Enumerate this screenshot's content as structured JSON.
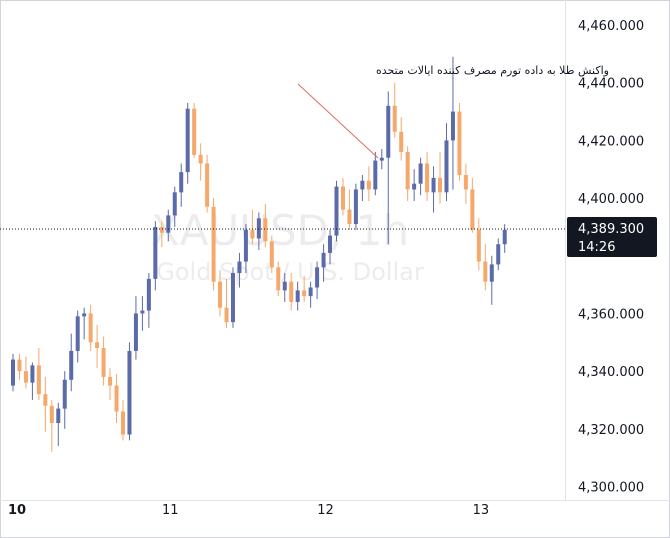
{
  "chart_data": {
    "type": "candlestick",
    "watermark": {
      "symbol": "XAUUSD, 1h",
      "description": "Gold Spot / U.S. Dollar"
    },
    "annotation": "واکنش طلا به داده تورم مصرف کننده ایالات متحده",
    "x_labels": [
      {
        "label": "10",
        "bar": 0
      },
      {
        "label": "11",
        "bar": 24
      },
      {
        "label": "12",
        "bar": 48
      },
      {
        "label": "13",
        "bar": 72
      }
    ],
    "y_ticks": [
      "4,460.000",
      "4,440.000",
      "4,420.000",
      "4,400.000",
      "4,360.000",
      "4,340.000",
      "4,320.000",
      "4,300.000"
    ],
    "ylim": [
      4296,
      4468
    ],
    "last_price": "4,389.300",
    "countdown": "14:26",
    "colors": {
      "up": "#5b6aa8",
      "down": "#f5a86a",
      "price_label": "#131722"
    },
    "ohlc": [
      [
        4335,
        4346,
        4333,
        4344
      ],
      [
        4344,
        4346,
        4337,
        4340
      ],
      [
        4340,
        4345,
        4334,
        4336
      ],
      [
        4336,
        4343,
        4330,
        4342
      ],
      [
        4342,
        4348,
        4330,
        4332
      ],
      [
        4332,
        4338,
        4319,
        4328
      ],
      [
        4328,
        4330,
        4312,
        4322
      ],
      [
        4322,
        4329,
        4314,
        4327
      ],
      [
        4327,
        4340,
        4320,
        4337
      ],
      [
        4337,
        4353,
        4333,
        4347
      ],
      [
        4347,
        4361,
        4343,
        4359
      ],
      [
        4359,
        4362,
        4351,
        4360
      ],
      [
        4360,
        4363,
        4347,
        4350
      ],
      [
        4350,
        4356,
        4341,
        4348
      ],
      [
        4348,
        4352,
        4335,
        4338
      ],
      [
        4338,
        4341,
        4330,
        4335
      ],
      [
        4335,
        4339,
        4322,
        4326
      ],
      [
        4326,
        4330,
        4316,
        4318
      ],
      [
        4318,
        4350,
        4316,
        4347
      ],
      [
        4347,
        4366,
        4344,
        4360
      ],
      [
        4360,
        4366,
        4354,
        4361
      ],
      [
        4361,
        4374,
        4355,
        4372
      ],
      [
        4372,
        4392,
        4368,
        4390
      ],
      [
        4390,
        4392,
        4383,
        4388
      ],
      [
        4388,
        4396,
        4385,
        4394
      ],
      [
        4394,
        4404,
        4390,
        4402
      ],
      [
        4402,
        4412,
        4397,
        4409
      ],
      [
        4409,
        4433,
        4405,
        4431
      ],
      [
        4431,
        4433,
        4414,
        4415
      ],
      [
        4415,
        4419,
        4406,
        4412
      ],
      [
        4412,
        4415,
        4395,
        4397
      ],
      [
        4397,
        4400,
        4368,
        4371
      ],
      [
        4371,
        4375,
        4359,
        4362
      ],
      [
        4362,
        4372,
        4355,
        4357
      ],
      [
        4357,
        4376,
        4355,
        4374
      ],
      [
        4374,
        4381,
        4369,
        4378
      ],
      [
        4378,
        4391,
        4374,
        4389
      ],
      [
        4389,
        4396,
        4384,
        4386
      ],
      [
        4386,
        4395,
        4382,
        4393
      ],
      [
        4393,
        4398,
        4383,
        4385
      ],
      [
        4385,
        4387,
        4374,
        4376
      ],
      [
        4376,
        4378,
        4366,
        4368
      ],
      [
        4368,
        4374,
        4364,
        4371
      ],
      [
        4371,
        4374,
        4361,
        4364
      ],
      [
        4364,
        4371,
        4361,
        4368
      ],
      [
        4368,
        4373,
        4364,
        4366
      ],
      [
        4366,
        4371,
        4362,
        4369
      ],
      [
        4369,
        4378,
        4365,
        4376
      ],
      [
        4376,
        4384,
        4371,
        4381
      ],
      [
        4381,
        4389,
        4377,
        4387
      ],
      [
        4387,
        4406,
        4385,
        4404
      ],
      [
        4404,
        4407,
        4394,
        4396
      ],
      [
        4396,
        4403,
        4389,
        4391
      ],
      [
        4391,
        4405,
        4389,
        4403
      ],
      [
        4403,
        4408,
        4399,
        4406
      ],
      [
        4406,
        4411,
        4399,
        4403
      ],
      [
        4403,
        4416,
        4401,
        4413
      ],
      [
        4413,
        4417,
        4410,
        4414
      ],
      [
        4414,
        4437,
        4384,
        4432
      ],
      [
        4432,
        4440,
        4421,
        4423
      ],
      [
        4423,
        4428,
        4413,
        4416
      ],
      [
        4416,
        4418,
        4399,
        4403
      ],
      [
        4403,
        4410,
        4399,
        4405
      ],
      [
        4405,
        4414,
        4401,
        4412
      ],
      [
        4412,
        4416,
        4399,
        4402
      ],
      [
        4402,
        4411,
        4395,
        4407
      ],
      [
        4407,
        4416,
        4398,
        4402
      ],
      [
        4402,
        4426,
        4399,
        4420
      ],
      [
        4420,
        4449,
        4403,
        4430
      ],
      [
        4430,
        4433,
        4406,
        4408
      ],
      [
        4408,
        4412,
        4398,
        4403
      ],
      [
        4403,
        4407,
        4388,
        4389
      ],
      [
        4389,
        4393,
        4375,
        4378
      ],
      [
        4378,
        4384,
        4368,
        4371
      ],
      [
        4371,
        4380,
        4363,
        4377
      ],
      [
        4377,
        4386,
        4375,
        4384
      ],
      [
        4384,
        4391,
        4381,
        4389
      ]
    ]
  }
}
